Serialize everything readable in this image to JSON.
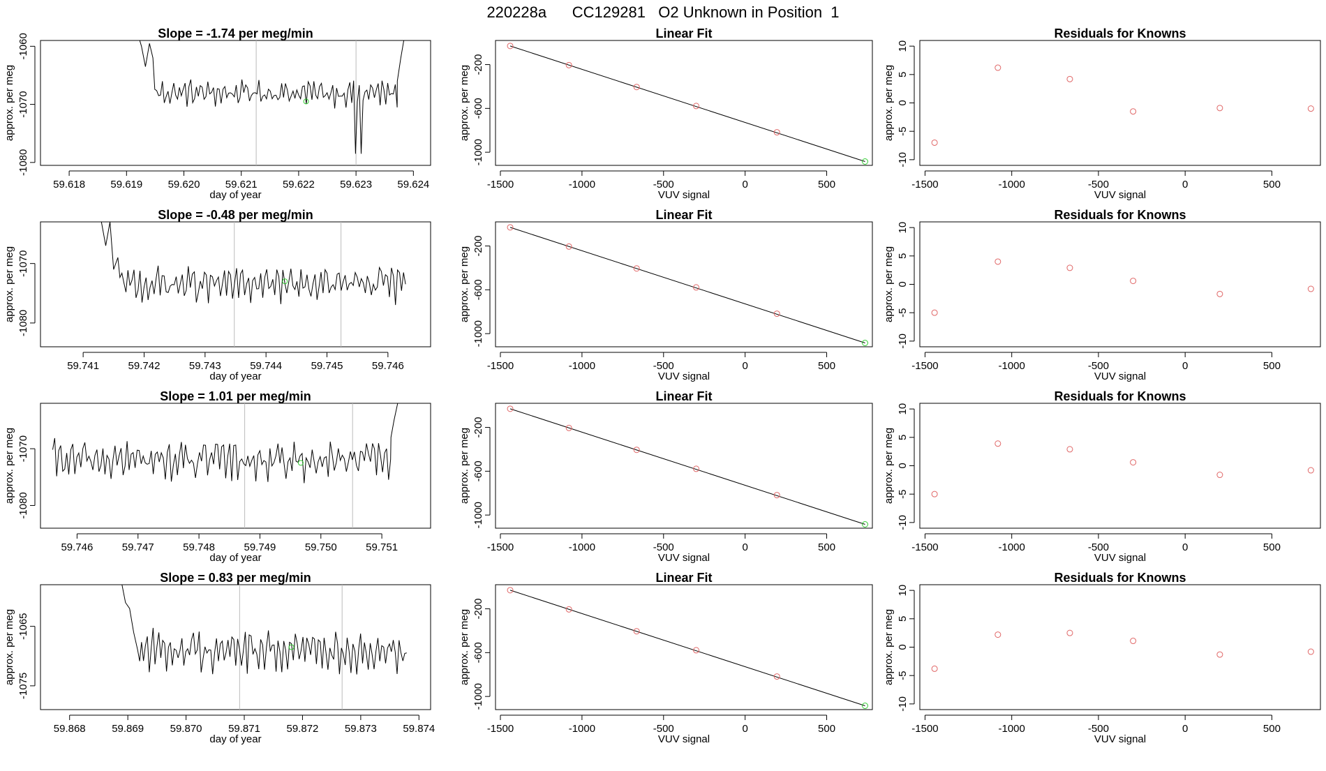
{
  "figure_title": "220228a      CC129281   O2 Unknown in Position  1",
  "colors": {
    "axis": "#000000",
    "trace": "#000000",
    "marker_red": "#e06666",
    "marker_green": "#33cc33",
    "vline": "#bbbbbb",
    "background": "#ffffff"
  },
  "chart_data": [
    {
      "row": 1,
      "panel": "timeseries",
      "type": "line",
      "title": "Slope =  -1.74  per meg/min",
      "xlabel": "day of year",
      "ylabel": "approx. per meg",
      "xlim": [
        59.6175,
        59.6243
      ],
      "ylim": [
        -1080.5,
        -1059
      ],
      "xticks": [
        59.618,
        59.619,
        59.62,
        59.621,
        59.622,
        59.623,
        59.624
      ],
      "xtick_labels": [
        "59.618",
        "59.619",
        "59.620",
        "59.621",
        "59.622",
        "59.623",
        "59.624"
      ],
      "yticks": [
        -1080,
        -1070,
        -1060
      ],
      "ytick_labels": [
        "-1080",
        "-1070",
        "-1060"
      ],
      "vlines": [
        59.62126,
        59.623
      ],
      "highlight_point": {
        "x": 59.62213,
        "y": -1069.5
      },
      "series_start_x": 59.6192,
      "series_end_x": 59.6238,
      "series_step": 3.3e-05,
      "series_base": -1068.0,
      "series_amp": 1.7,
      "series_head_points": [
        [
          59.6192,
          -1058
        ],
        [
          59.61926,
          -1060
        ],
        [
          59.61933,
          -1063.5
        ],
        [
          59.6194,
          -1059.5
        ],
        [
          59.61946,
          -1062
        ]
      ],
      "series_tail_points": [
        [
          59.62372,
          -1066
        ],
        [
          59.62378,
          -1062
        ],
        [
          59.62385,
          -1058
        ]
      ],
      "series_dips": [
        [
          59.623,
          -1078.5
        ],
        [
          59.6231,
          -1078.5
        ]
      ]
    },
    {
      "row": 1,
      "panel": "linear_fit",
      "type": "scatter",
      "title": "Linear Fit",
      "xlabel": "VUV signal",
      "ylabel": "approx. per meg",
      "xlim": [
        -1530,
        780
      ],
      "ylim": [
        -1120,
        20
      ],
      "xticks": [
        -1500,
        -1000,
        -500,
        0,
        500
      ],
      "xtick_labels": [
        "-1500",
        "-1000",
        "-500",
        "0",
        "500"
      ],
      "yticks": [
        -1000,
        -600,
        -200
      ],
      "ytick_labels": [
        "-1000",
        "-600",
        "-200"
      ],
      "fit_line": [
        [
          -1440,
          -30
        ],
        [
          735,
          -1085
        ]
      ],
      "points": [
        [
          -1440,
          -30
        ],
        [
          -1080,
          -205
        ],
        [
          -665,
          -405
        ],
        [
          -300,
          -578
        ],
        [
          195,
          -818
        ]
      ],
      "green_points": [
        [
          735,
          -1085
        ]
      ]
    },
    {
      "row": 1,
      "panel": "residuals",
      "type": "scatter",
      "title": "Residuals for Knowns",
      "xlabel": "VUV signal",
      "ylabel": "approx. per meg",
      "xlim": [
        -1530,
        780
      ],
      "ylim": [
        -11,
        11
      ],
      "xticks": [
        -1500,
        -1000,
        -500,
        0,
        500
      ],
      "xtick_labels": [
        "-1500",
        "-1000",
        "-500",
        "0",
        "500"
      ],
      "yticks": [
        -10,
        -5,
        0,
        5,
        10
      ],
      "ytick_labels": [
        "-10",
        "-5",
        "0",
        "5",
        "10"
      ],
      "points": [
        [
          -1445,
          -7.0
        ],
        [
          -1080,
          6.2
        ],
        [
          -665,
          4.2
        ],
        [
          -300,
          -1.5
        ],
        [
          200,
          -0.9
        ],
        [
          725,
          -1.0
        ]
      ]
    },
    {
      "row": 2,
      "panel": "timeseries",
      "type": "line",
      "title": "Slope =  -0.48  per meg/min",
      "xlabel": "day of year",
      "ylabel": "approx. per meg",
      "xlim": [
        59.7403,
        59.7467
      ],
      "ylim": [
        -1084,
        -1063
      ],
      "xticks": [
        59.741,
        59.742,
        59.743,
        59.744,
        59.745,
        59.746
      ],
      "xtick_labels": [
        "59.741",
        "59.742",
        "59.743",
        "59.744",
        "59.745",
        "59.746"
      ],
      "yticks": [
        -1080,
        -1070
      ],
      "ytick_labels": [
        "-1080",
        "-1070"
      ],
      "vlines": [
        59.74348,
        59.74523
      ],
      "highlight_point": {
        "x": 59.74431,
        "y": -1073.0
      },
      "series_start_x": 59.7413,
      "series_end_x": 59.7463,
      "series_step": 3.3e-05,
      "series_base": -1073.5,
      "series_amp": 2.2,
      "series_head_points": [
        [
          59.7413,
          -1063
        ],
        [
          59.74137,
          -1067
        ],
        [
          59.74144,
          -1063
        ],
        [
          59.7415,
          -1071
        ],
        [
          59.74157,
          -1069
        ]
      ],
      "series_tail_points": [],
      "series_dips": []
    },
    {
      "row": 2,
      "panel": "linear_fit",
      "type": "scatter",
      "title": "Linear Fit",
      "xlabel": "VUV signal",
      "ylabel": "approx. per meg",
      "xlim": [
        -1530,
        780
      ],
      "ylim": [
        -1120,
        20
      ],
      "xticks": [
        -1500,
        -1000,
        -500,
        0,
        500
      ],
      "xtick_labels": [
        "-1500",
        "-1000",
        "-500",
        "0",
        "500"
      ],
      "yticks": [
        -1000,
        -600,
        -200
      ],
      "ytick_labels": [
        "-1000",
        "-600",
        "-200"
      ],
      "fit_line": [
        [
          -1440,
          -30
        ],
        [
          735,
          -1085
        ]
      ],
      "points": [
        [
          -1440,
          -30
        ],
        [
          -1080,
          -205
        ],
        [
          -665,
          -405
        ],
        [
          -300,
          -578
        ],
        [
          195,
          -818
        ]
      ],
      "green_points": [
        [
          735,
          -1085
        ]
      ]
    },
    {
      "row": 2,
      "panel": "residuals",
      "type": "scatter",
      "title": "Residuals for Knowns",
      "xlabel": "VUV signal",
      "ylabel": "approx. per meg",
      "xlim": [
        -1530,
        780
      ],
      "ylim": [
        -11,
        11
      ],
      "xticks": [
        -1500,
        -1000,
        -500,
        0,
        500
      ],
      "xtick_labels": [
        "-1500",
        "-1000",
        "-500",
        "0",
        "500"
      ],
      "yticks": [
        -10,
        -5,
        0,
        5,
        10
      ],
      "ytick_labels": [
        "-10",
        "-5",
        "0",
        "5",
        "10"
      ],
      "points": [
        [
          -1445,
          -5.0
        ],
        [
          -1080,
          4.0
        ],
        [
          -665,
          2.9
        ],
        [
          -300,
          0.6
        ],
        [
          200,
          -1.7
        ],
        [
          725,
          -0.8
        ]
      ]
    },
    {
      "row": 3,
      "panel": "timeseries",
      "type": "line",
      "title": "Slope =  1.01  per meg/min",
      "xlabel": "day of year",
      "ylabel": "approx. per meg",
      "xlim": [
        59.7454,
        59.7518
      ],
      "ylim": [
        -1084,
        -1062
      ],
      "xticks": [
        59.746,
        59.747,
        59.748,
        59.749,
        59.75,
        59.751
      ],
      "xtick_labels": [
        "59.746",
        "59.747",
        "59.748",
        "59.749",
        "59.750",
        "59.751"
      ],
      "yticks": [
        -1080,
        -1070
      ],
      "ytick_labels": [
        "-1080",
        "-1070"
      ],
      "vlines": [
        59.74875,
        59.75052
      ],
      "highlight_point": {
        "x": 59.74967,
        "y": -1072.5
      },
      "series_start_x": 59.7456,
      "series_end_x": 59.7513,
      "series_step": 3.3e-05,
      "series_base": -1072.0,
      "series_amp": 2.6,
      "series_head_points": [],
      "series_tail_points": [
        [
          59.75115,
          -1068
        ],
        [
          59.7512,
          -1065
        ],
        [
          59.75126,
          -1062
        ]
      ],
      "series_dips": []
    },
    {
      "row": 3,
      "panel": "linear_fit",
      "type": "scatter",
      "title": "Linear Fit",
      "xlabel": "VUV signal",
      "ylabel": "approx. per meg",
      "xlim": [
        -1530,
        780
      ],
      "ylim": [
        -1120,
        20
      ],
      "xticks": [
        -1500,
        -1000,
        -500,
        0,
        500
      ],
      "xtick_labels": [
        "-1500",
        "-1000",
        "-500",
        "0",
        "500"
      ],
      "yticks": [
        -1000,
        -600,
        -200
      ],
      "ytick_labels": [
        "-1000",
        "-600",
        "-200"
      ],
      "fit_line": [
        [
          -1440,
          -30
        ],
        [
          735,
          -1085
        ]
      ],
      "points": [
        [
          -1440,
          -30
        ],
        [
          -1080,
          -205
        ],
        [
          -665,
          -405
        ],
        [
          -300,
          -578
        ],
        [
          195,
          -818
        ]
      ],
      "green_points": [
        [
          735,
          -1085
        ]
      ]
    },
    {
      "row": 3,
      "panel": "residuals",
      "type": "scatter",
      "title": "Residuals for Knowns",
      "xlabel": "VUV signal",
      "ylabel": "approx. per meg",
      "xlim": [
        -1530,
        780
      ],
      "ylim": [
        -11,
        11
      ],
      "xticks": [
        -1500,
        -1000,
        -500,
        0,
        500
      ],
      "xtick_labels": [
        "-1500",
        "-1000",
        "-500",
        "0",
        "500"
      ],
      "yticks": [
        -10,
        -5,
        0,
        5,
        10
      ],
      "ytick_labels": [
        "-10",
        "-5",
        "0",
        "5",
        "10"
      ],
      "points": [
        [
          -1445,
          -5.0
        ],
        [
          -1080,
          3.9
        ],
        [
          -665,
          2.9
        ],
        [
          -300,
          0.6
        ],
        [
          200,
          -1.6
        ],
        [
          725,
          -0.8
        ]
      ]
    },
    {
      "row": 4,
      "panel": "timeseries",
      "type": "line",
      "title": "Slope =  0.83  per meg/min",
      "xlabel": "day of year",
      "ylabel": "approx. per meg",
      "xlim": [
        59.8675,
        59.8742
      ],
      "ylim": [
        -1079,
        -1058
      ],
      "xticks": [
        59.868,
        59.869,
        59.87,
        59.871,
        59.872,
        59.873,
        59.874
      ],
      "xtick_labels": [
        "59.868",
        "59.869",
        "59.870",
        "59.871",
        "59.872",
        "59.873",
        "59.874"
      ],
      "yticks": [
        -1075,
        -1065
      ],
      "ytick_labels": [
        "-1075",
        "-1065"
      ],
      "vlines": [
        59.87092,
        59.87268
      ],
      "highlight_point": {
        "x": 59.87181,
        "y": -1068.5
      },
      "series_start_x": 59.8689,
      "series_end_x": 59.8738,
      "series_step": 3.3e-05,
      "series_base": -1069.0,
      "series_amp": 2.6,
      "series_head_points": [
        [
          59.8689,
          -1058
        ],
        [
          59.86896,
          -1061
        ],
        [
          59.86903,
          -1062
        ],
        [
          59.8691,
          -1066
        ],
        [
          59.86917,
          -1069
        ]
      ],
      "series_tail_points": [],
      "series_dips": []
    },
    {
      "row": 4,
      "panel": "linear_fit",
      "type": "scatter",
      "title": "Linear Fit",
      "xlabel": "VUV signal",
      "ylabel": "approx. per meg",
      "xlim": [
        -1530,
        780
      ],
      "ylim": [
        -1120,
        20
      ],
      "xticks": [
        -1500,
        -1000,
        -500,
        0,
        500
      ],
      "xtick_labels": [
        "-1500",
        "-1000",
        "-500",
        "0",
        "500"
      ],
      "yticks": [
        -1000,
        -600,
        -200
      ],
      "ytick_labels": [
        "-1000",
        "-600",
        "-200"
      ],
      "fit_line": [
        [
          -1440,
          -30
        ],
        [
          735,
          -1085
        ]
      ],
      "points": [
        [
          -1440,
          -30
        ],
        [
          -1080,
          -205
        ],
        [
          -665,
          -405
        ],
        [
          -300,
          -578
        ],
        [
          195,
          -818
        ]
      ],
      "green_points": [
        [
          735,
          -1085
        ]
      ]
    },
    {
      "row": 4,
      "panel": "residuals",
      "type": "scatter",
      "title": "Residuals for Knowns",
      "xlabel": "VUV signal",
      "ylabel": "approx. per meg",
      "xlim": [
        -1530,
        780
      ],
      "ylim": [
        -11,
        11
      ],
      "xticks": [
        -1500,
        -1000,
        -500,
        0,
        500
      ],
      "xtick_labels": [
        "-1500",
        "-1000",
        "-500",
        "0",
        "500"
      ],
      "yticks": [
        -10,
        -5,
        0,
        5,
        10
      ],
      "ytick_labels": [
        "-10",
        "-5",
        "0",
        "5",
        "10"
      ],
      "points": [
        [
          -1445,
          -3.8
        ],
        [
          -1080,
          2.2
        ],
        [
          -665,
          2.5
        ],
        [
          -300,
          1.1
        ],
        [
          200,
          -1.3
        ],
        [
          725,
          -0.8
        ]
      ]
    }
  ]
}
